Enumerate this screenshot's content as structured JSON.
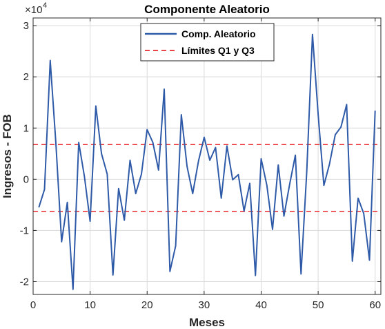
{
  "chart_data": {
    "type": "line",
    "title": "Componente Aleatorio",
    "xlabel": "Meses",
    "ylabel": "Ingresos - FOB",
    "y_exponent_base": "×10",
    "y_exponent_power": "4",
    "xlim": [
      0,
      61
    ],
    "ylim": [
      -2.25,
      3.15
    ],
    "scale_factor": 10000,
    "grid": true,
    "legend_position": "top-center",
    "x_ticks": [
      0,
      10,
      20,
      30,
      40,
      50,
      60
    ],
    "x_tick_labels": [
      "0",
      "10",
      "20",
      "30",
      "40",
      "50",
      "60"
    ],
    "y_ticks": [
      -2,
      -1,
      0,
      1,
      2,
      3
    ],
    "y_tick_labels": [
      "-2",
      "-1",
      "0",
      "1",
      "2",
      "3"
    ],
    "series": [
      {
        "name": "Comp. Aleatorio",
        "style": "solid",
        "color": "#2E5AA8",
        "x": [
          1,
          2,
          3,
          4,
          5,
          6,
          7,
          8,
          9,
          10,
          11,
          12,
          13,
          14,
          15,
          16,
          17,
          18,
          19,
          20,
          21,
          22,
          23,
          24,
          25,
          26,
          27,
          28,
          29,
          30,
          31,
          32,
          33,
          34,
          35,
          36,
          37,
          38,
          39,
          40,
          41,
          42,
          43,
          44,
          45,
          46,
          47,
          48,
          49,
          50,
          51,
          52,
          53,
          54,
          55,
          56,
          57,
          58,
          59,
          60
        ],
        "y": [
          -0.55,
          -0.2,
          2.32,
          0.7,
          -1.22,
          -0.45,
          -2.15,
          0.72,
          0.05,
          -0.82,
          1.43,
          0.5,
          0.1,
          -1.87,
          -0.18,
          -0.8,
          0.37,
          -0.28,
          0.1,
          0.97,
          0.72,
          0.18,
          1.76,
          -1.8,
          -1.3,
          1.26,
          0.25,
          -0.28,
          0.35,
          0.82,
          0.37,
          0.62,
          -0.37,
          0.65,
          -0.01,
          0.09,
          -0.62,
          -0.08,
          -1.88,
          0.4,
          -0.12,
          -0.98,
          0.28,
          -0.72,
          -0.1,
          0.47,
          -1.85,
          0.15,
          2.83,
          1.27,
          -0.12,
          0.3,
          0.87,
          1.02,
          1.46,
          -1.6,
          -0.37,
          -0.67,
          -1.58,
          1.34
        ]
      },
      {
        "name": "Límites Q1 y Q3",
        "style": "dashed",
        "color": "#E8292B",
        "lines_y": [
          0.68,
          -0.63
        ]
      }
    ]
  }
}
